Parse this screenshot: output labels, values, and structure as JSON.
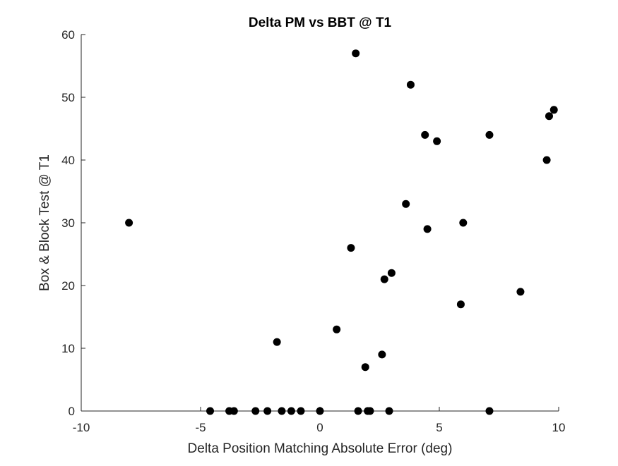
{
  "chart_data": {
    "type": "scatter",
    "title": "Delta PM vs BBT @ T1",
    "xlabel": "Delta Position Matching Absolute Error (deg)",
    "ylabel": "Box & Block Test @ T1",
    "xlim": [
      -10,
      10
    ],
    "ylim": [
      0,
      60
    ],
    "xticks": [
      -10,
      -5,
      0,
      5,
      10
    ],
    "yticks": [
      0,
      10,
      20,
      30,
      40,
      50,
      60
    ],
    "grid": false,
    "legend": "none",
    "marker_color": "#000000",
    "axis_color": "#262626",
    "points": [
      {
        "x": -8.0,
        "y": 30
      },
      {
        "x": -4.6,
        "y": 0
      },
      {
        "x": -3.8,
        "y": 0
      },
      {
        "x": -3.6,
        "y": 0
      },
      {
        "x": -2.7,
        "y": 0
      },
      {
        "x": -2.2,
        "y": 0
      },
      {
        "x": -1.8,
        "y": 11
      },
      {
        "x": -1.6,
        "y": 0
      },
      {
        "x": -1.2,
        "y": 0
      },
      {
        "x": -0.8,
        "y": 0
      },
      {
        "x": 0.0,
        "y": 0
      },
      {
        "x": 0.7,
        "y": 13
      },
      {
        "x": 1.3,
        "y": 26
      },
      {
        "x": 1.5,
        "y": 57
      },
      {
        "x": 1.6,
        "y": 0
      },
      {
        "x": 1.9,
        "y": 7
      },
      {
        "x": 2.0,
        "y": 0
      },
      {
        "x": 2.1,
        "y": 0
      },
      {
        "x": 2.6,
        "y": 9
      },
      {
        "x": 2.7,
        "y": 21
      },
      {
        "x": 2.9,
        "y": 0
      },
      {
        "x": 3.0,
        "y": 22
      },
      {
        "x": 3.6,
        "y": 33
      },
      {
        "x": 3.8,
        "y": 52
      },
      {
        "x": 4.4,
        "y": 44
      },
      {
        "x": 4.5,
        "y": 29
      },
      {
        "x": 4.9,
        "y": 43
      },
      {
        "x": 5.9,
        "y": 17
      },
      {
        "x": 6.0,
        "y": 30
      },
      {
        "x": 7.1,
        "y": 44
      },
      {
        "x": 7.1,
        "y": 0
      },
      {
        "x": 8.4,
        "y": 19
      },
      {
        "x": 9.5,
        "y": 40
      },
      {
        "x": 9.6,
        "y": 47
      },
      {
        "x": 9.8,
        "y": 48
      }
    ]
  }
}
